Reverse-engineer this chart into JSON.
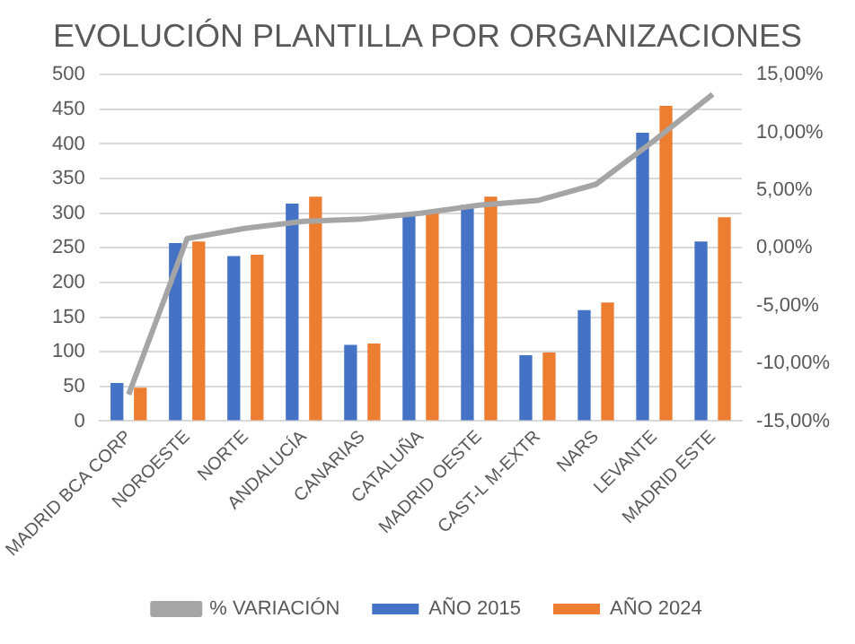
{
  "chart_data": {
    "type": "bar",
    "title": "EVOLUCIÓN PLANTILLA POR ORGANIZACIONES",
    "categories": [
      "MADRID BCA CORP",
      "NOROESTE",
      "NORTE",
      "ANDALUCÍA",
      "CANARIAS",
      "CATALUÑA",
      "MADRID OESTE",
      "CAST-L M-EXTR",
      "NARS",
      "LEVANTE",
      "MADRID ESTE"
    ],
    "series": [
      {
        "name": "AÑO 2015",
        "color": "#4472c4",
        "values": [
          55,
          257,
          238,
          314,
          110,
          296,
          312,
          95,
          160,
          416,
          259
        ]
      },
      {
        "name": "AÑO 2024",
        "color": "#ed7d31",
        "values": [
          48,
          259,
          240,
          324,
          112,
          304,
          324,
          99,
          171,
          455,
          294
        ]
      },
      {
        "name": "% VARIACIÓN",
        "type": "line",
        "axis": "y2",
        "color": "#a5a5a5",
        "values": [
          -12.7,
          0.8,
          1.7,
          2.3,
          2.5,
          3.0,
          3.7,
          4.1,
          5.5,
          9.3,
          13.3
        ]
      }
    ],
    "ylim": [
      0,
      500
    ],
    "yticks": [
      0,
      50,
      100,
      150,
      200,
      250,
      300,
      350,
      400,
      450,
      500
    ],
    "y2lim": [
      -15,
      15
    ],
    "y2ticks": [
      {
        "value": -15,
        "label": "-15,00%"
      },
      {
        "value": -10,
        "label": "-10,00%"
      },
      {
        "value": -5,
        "label": "-5,00%"
      },
      {
        "value": 0,
        "label": "0,00%"
      },
      {
        "value": 5,
        "label": "5,00%"
      },
      {
        "value": 10,
        "label": "10,00%"
      },
      {
        "value": 15,
        "label": "15,00%"
      }
    ],
    "grid": "y",
    "legend": "bottom",
    "marker": "none"
  }
}
